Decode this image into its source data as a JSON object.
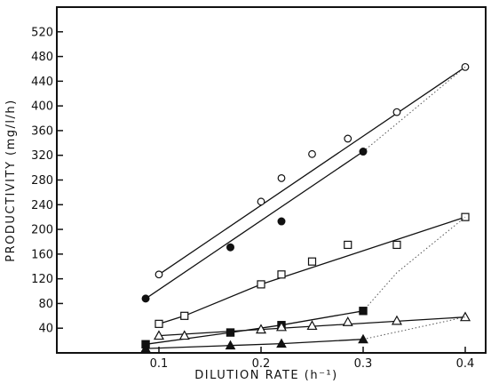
{
  "chart_data": {
    "type": "scatter",
    "title": "",
    "xlabel": "DILUTION RATE (h⁻¹)",
    "ylabel": "PRODUCTIVITY (mg/l/h)",
    "xlim": [
      0,
      0.42
    ],
    "ylim": [
      0,
      560
    ],
    "x_ticks": [
      0.1,
      0.2,
      0.3,
      0.4
    ],
    "x_tick_labels": [
      "0.1",
      "0.2",
      "0.3",
      "0.4"
    ],
    "y_ticks": [
      40,
      80,
      120,
      160,
      200,
      240,
      280,
      320,
      360,
      400,
      440,
      480,
      520
    ],
    "y_tick_labels": [
      "40",
      "80",
      "120",
      "160",
      "200",
      "240",
      "280",
      "320",
      "360",
      "400",
      "440",
      "480",
      "520"
    ],
    "grid": false,
    "legend": "none",
    "series": [
      {
        "marker": "open-circle",
        "points": [
          [
            0.1,
            127
          ],
          [
            0.2,
            245
          ],
          [
            0.22,
            283
          ],
          [
            0.25,
            322
          ],
          [
            0.285,
            347
          ],
          [
            0.333,
            390
          ],
          [
            0.4,
            463
          ]
        ],
        "fit": [
          [
            0.1,
            127
          ],
          [
            0.4,
            463
          ]
        ]
      },
      {
        "marker": "filled-circle",
        "points": [
          [
            0.087,
            88
          ],
          [
            0.17,
            171
          ],
          [
            0.22,
            213
          ],
          [
            0.3,
            326
          ]
        ],
        "fit": [
          [
            0.087,
            88
          ],
          [
            0.3,
            326
          ]
        ],
        "dotted_extension": [
          [
            0.3,
            326
          ],
          [
            0.4,
            463
          ]
        ]
      },
      {
        "marker": "open-square",
        "points": [
          [
            0.1,
            47
          ],
          [
            0.125,
            60
          ],
          [
            0.2,
            111
          ],
          [
            0.22,
            127
          ],
          [
            0.25,
            148
          ],
          [
            0.285,
            175
          ],
          [
            0.333,
            175
          ],
          [
            0.4,
            220
          ]
        ],
        "fit": [
          [
            0.1,
            47
          ],
          [
            0.125,
            60
          ],
          [
            0.2,
            111
          ],
          [
            0.4,
            220
          ]
        ]
      },
      {
        "marker": "filled-square",
        "points": [
          [
            0.087,
            14
          ],
          [
            0.17,
            33
          ],
          [
            0.22,
            45
          ],
          [
            0.3,
            68
          ]
        ],
        "fit": [
          [
            0.087,
            14
          ],
          [
            0.17,
            33
          ],
          [
            0.22,
            45
          ],
          [
            0.3,
            68
          ]
        ],
        "dotted_extension": [
          [
            0.3,
            68
          ],
          [
            0.333,
            130
          ],
          [
            0.4,
            220
          ]
        ]
      },
      {
        "marker": "open-triangle",
        "points": [
          [
            0.1,
            28
          ],
          [
            0.125,
            28
          ],
          [
            0.2,
            38
          ],
          [
            0.22,
            42
          ],
          [
            0.25,
            44
          ],
          [
            0.285,
            50
          ],
          [
            0.333,
            52
          ],
          [
            0.4,
            58
          ]
        ],
        "fit": [
          [
            0.1,
            28
          ],
          [
            0.2,
            38
          ],
          [
            0.4,
            58
          ]
        ]
      },
      {
        "marker": "filled-triangle",
        "points": [
          [
            0.087,
            7
          ],
          [
            0.17,
            12
          ],
          [
            0.22,
            15
          ],
          [
            0.3,
            22
          ]
        ],
        "fit": [
          [
            0.087,
            7
          ],
          [
            0.17,
            12
          ],
          [
            0.22,
            15
          ],
          [
            0.3,
            22
          ]
        ],
        "dotted_extension": [
          [
            0.3,
            22
          ],
          [
            0.4,
            58
          ]
        ]
      }
    ]
  }
}
